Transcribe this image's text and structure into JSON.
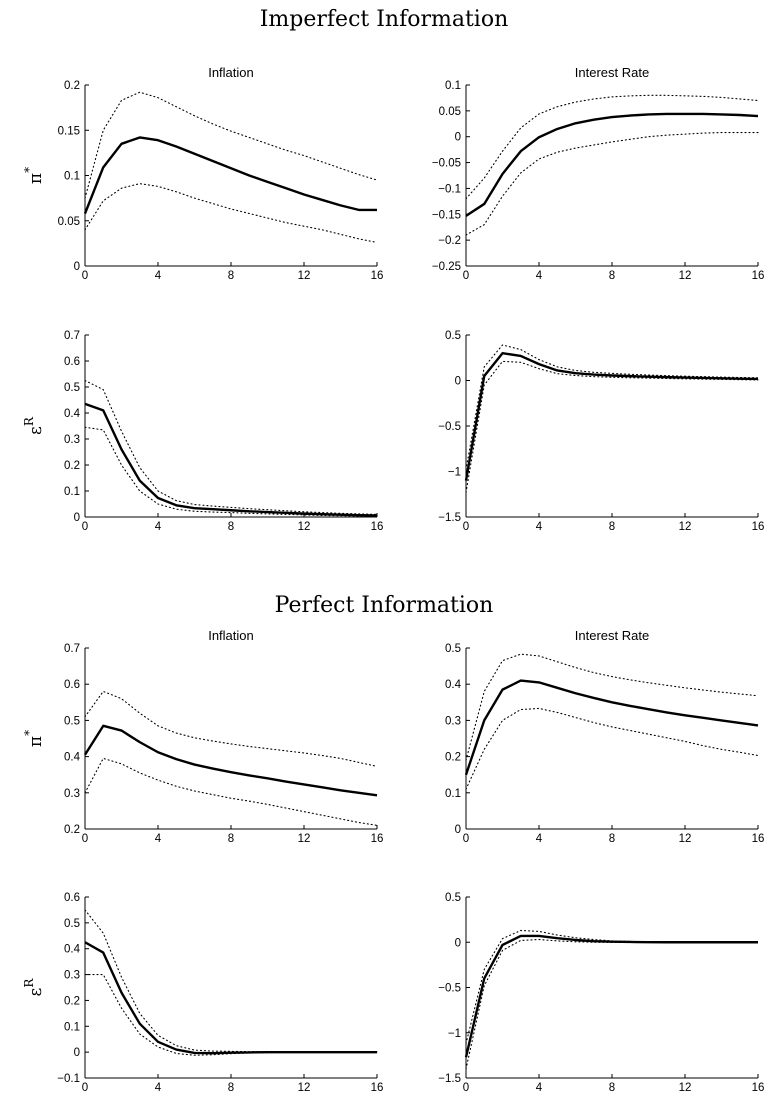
{
  "sections": [
    {
      "title": "Imperfect Information"
    },
    {
      "title": "Perfect Information"
    }
  ],
  "chart_data": [
    {
      "type": "line",
      "section": "Imperfect Information",
      "title": "Inflation",
      "row_label": {
        "base": "π",
        "sup": "*"
      },
      "xlim": [
        0,
        16
      ],
      "ylim": [
        0,
        0.2
      ],
      "xticks": [
        0,
        4,
        8,
        12,
        16
      ],
      "yticks": [
        0,
        0.05,
        0.1,
        0.15,
        0.2
      ],
      "ytick_labels": [
        "0",
        "0.05",
        "0.1",
        "0.15",
        "0.2"
      ],
      "x": [
        0,
        1,
        2,
        3,
        4,
        5,
        6,
        7,
        8,
        9,
        10,
        11,
        12,
        13,
        14,
        15,
        16
      ],
      "series": [
        {
          "role": "median",
          "style": "solid",
          "values": [
            0.058,
            0.109,
            0.135,
            0.142,
            0.139,
            0.132,
            0.124,
            0.116,
            0.108,
            0.1,
            0.093,
            0.086,
            0.079,
            0.073,
            0.067,
            0.062,
            0.062
          ]
        },
        {
          "role": "upper",
          "style": "dotted",
          "values": [
            0.075,
            0.15,
            0.183,
            0.192,
            0.186,
            0.176,
            0.166,
            0.157,
            0.149,
            0.142,
            0.135,
            0.128,
            0.122,
            0.115,
            0.108,
            0.101,
            0.095
          ]
        },
        {
          "role": "lower",
          "style": "dotted",
          "values": [
            0.04,
            0.072,
            0.086,
            0.091,
            0.088,
            0.082,
            0.075,
            0.069,
            0.063,
            0.058,
            0.053,
            0.048,
            0.044,
            0.04,
            0.035,
            0.03,
            0.026
          ]
        }
      ]
    },
    {
      "type": "line",
      "section": "Imperfect Information",
      "title": "Interest Rate",
      "xlim": [
        0,
        16
      ],
      "ylim": [
        -0.25,
        0.1
      ],
      "xticks": [
        0,
        4,
        8,
        12,
        16
      ],
      "yticks": [
        -0.25,
        -0.2,
        -0.15,
        -0.1,
        -0.05,
        0,
        0.05,
        0.1
      ],
      "ytick_labels": [
        "−0.25",
        "−0.2",
        "−0.15",
        "−0.1",
        "−0.05",
        "0",
        "0.05",
        "0.1"
      ],
      "x": [
        0,
        1,
        2,
        3,
        4,
        5,
        6,
        7,
        8,
        9,
        10,
        11,
        12,
        13,
        14,
        15,
        16
      ],
      "series": [
        {
          "role": "median",
          "style": "solid",
          "values": [
            -0.153,
            -0.13,
            -0.072,
            -0.028,
            -0.001,
            0.015,
            0.026,
            0.033,
            0.038,
            0.041,
            0.043,
            0.044,
            0.044,
            0.044,
            0.043,
            0.042,
            0.04
          ]
        },
        {
          "role": "upper",
          "style": "dotted",
          "values": [
            -0.12,
            -0.08,
            -0.028,
            0.017,
            0.044,
            0.058,
            0.067,
            0.073,
            0.077,
            0.079,
            0.08,
            0.08,
            0.079,
            0.078,
            0.076,
            0.073,
            0.07
          ]
        },
        {
          "role": "lower",
          "style": "dotted",
          "values": [
            -0.19,
            -0.17,
            -0.115,
            -0.07,
            -0.043,
            -0.03,
            -0.022,
            -0.016,
            -0.01,
            -0.005,
            0.0,
            0.003,
            0.005,
            0.007,
            0.008,
            0.008,
            0.008
          ]
        }
      ]
    },
    {
      "type": "line",
      "section": "Imperfect Information",
      "title": "",
      "row_label": {
        "base": "ε",
        "sup": "R"
      },
      "xlim": [
        0,
        16
      ],
      "ylim": [
        0,
        0.7
      ],
      "xticks": [
        0,
        4,
        8,
        12,
        16
      ],
      "yticks": [
        0,
        0.1,
        0.2,
        0.3,
        0.4,
        0.5,
        0.6,
        0.7
      ],
      "ytick_labels": [
        "0",
        "0.1",
        "0.2",
        "0.3",
        "0.4",
        "0.5",
        "0.6",
        "0.7"
      ],
      "x": [
        0,
        1,
        2,
        3,
        4,
        5,
        6,
        7,
        8,
        9,
        10,
        11,
        12,
        13,
        14,
        15,
        16
      ],
      "series": [
        {
          "role": "median",
          "style": "solid",
          "values": [
            0.435,
            0.41,
            0.26,
            0.14,
            0.073,
            0.045,
            0.034,
            0.03,
            0.026,
            0.022,
            0.019,
            0.016,
            0.013,
            0.011,
            0.009,
            0.007,
            0.006
          ]
        },
        {
          "role": "upper",
          "style": "dotted",
          "values": [
            0.525,
            0.49,
            0.33,
            0.19,
            0.1,
            0.063,
            0.048,
            0.042,
            0.037,
            0.032,
            0.028,
            0.024,
            0.02,
            0.017,
            0.014,
            0.012,
            0.01
          ]
        },
        {
          "role": "lower",
          "style": "dotted",
          "values": [
            0.345,
            0.335,
            0.2,
            0.1,
            0.05,
            0.03,
            0.022,
            0.019,
            0.017,
            0.014,
            0.012,
            0.01,
            0.008,
            0.006,
            0.005,
            0.004,
            0.003
          ]
        }
      ]
    },
    {
      "type": "line",
      "section": "Imperfect Information",
      "title": "",
      "xlim": [
        0,
        16
      ],
      "ylim": [
        -1.5,
        0.5
      ],
      "xticks": [
        0,
        4,
        8,
        12,
        16
      ],
      "yticks": [
        -1.5,
        -1,
        -0.5,
        0,
        0.5
      ],
      "ytick_labels": [
        "−1.5",
        "−1",
        "−0.5",
        "0",
        "0.5"
      ],
      "x": [
        0,
        1,
        2,
        3,
        4,
        5,
        6,
        7,
        8,
        9,
        10,
        11,
        12,
        13,
        14,
        15,
        16
      ],
      "series": [
        {
          "role": "median",
          "style": "solid",
          "values": [
            -1.1,
            0.05,
            0.3,
            0.27,
            0.18,
            0.11,
            0.08,
            0.065,
            0.055,
            0.048,
            0.042,
            0.037,
            0.032,
            0.028,
            0.024,
            0.02,
            0.017
          ]
        },
        {
          "role": "upper",
          "style": "dotted",
          "values": [
            -0.98,
            0.15,
            0.39,
            0.34,
            0.23,
            0.15,
            0.11,
            0.09,
            0.078,
            0.068,
            0.06,
            0.053,
            0.047,
            0.042,
            0.037,
            0.033,
            0.03
          ]
        },
        {
          "role": "lower",
          "style": "dotted",
          "values": [
            -1.23,
            -0.05,
            0.21,
            0.2,
            0.13,
            0.075,
            0.055,
            0.042,
            0.035,
            0.03,
            0.026,
            0.022,
            0.018,
            0.015,
            0.012,
            0.009,
            0.006
          ]
        }
      ]
    },
    {
      "type": "line",
      "section": "Perfect Information",
      "title": "Inflation",
      "row_label": {
        "base": "π",
        "sup": "*"
      },
      "xlim": [
        0,
        16
      ],
      "ylim": [
        0.2,
        0.7
      ],
      "xticks": [
        0,
        4,
        8,
        12,
        16
      ],
      "yticks": [
        0.2,
        0.3,
        0.4,
        0.5,
        0.6,
        0.7
      ],
      "ytick_labels": [
        "0.2",
        "0.3",
        "0.4",
        "0.5",
        "0.6",
        "0.7"
      ],
      "x": [
        0,
        1,
        2,
        3,
        4,
        5,
        6,
        7,
        8,
        9,
        10,
        11,
        12,
        13,
        14,
        15,
        16
      ],
      "series": [
        {
          "role": "median",
          "style": "solid",
          "values": [
            0.405,
            0.485,
            0.472,
            0.44,
            0.412,
            0.393,
            0.378,
            0.367,
            0.357,
            0.348,
            0.34,
            0.331,
            0.323,
            0.315,
            0.307,
            0.3,
            0.293
          ]
        },
        {
          "role": "upper",
          "style": "dotted",
          "values": [
            0.51,
            0.58,
            0.56,
            0.52,
            0.485,
            0.465,
            0.452,
            0.443,
            0.435,
            0.428,
            0.422,
            0.416,
            0.41,
            0.403,
            0.395,
            0.384,
            0.373
          ]
        },
        {
          "role": "lower",
          "style": "dotted",
          "values": [
            0.3,
            0.395,
            0.38,
            0.355,
            0.335,
            0.318,
            0.305,
            0.295,
            0.285,
            0.277,
            0.268,
            0.258,
            0.248,
            0.238,
            0.228,
            0.218,
            0.21
          ]
        }
      ]
    },
    {
      "type": "line",
      "section": "Perfect Information",
      "title": "Interest Rate",
      "xlim": [
        0,
        16
      ],
      "ylim": [
        0,
        0.5
      ],
      "xticks": [
        0,
        4,
        8,
        12,
        16
      ],
      "yticks": [
        0,
        0.1,
        0.2,
        0.3,
        0.4,
        0.5
      ],
      "ytick_labels": [
        "0",
        "0.1",
        "0.2",
        "0.3",
        "0.4",
        "0.5"
      ],
      "x": [
        0,
        1,
        2,
        3,
        4,
        5,
        6,
        7,
        8,
        9,
        10,
        11,
        12,
        13,
        14,
        15,
        16
      ],
      "series": [
        {
          "role": "median",
          "style": "solid",
          "values": [
            0.15,
            0.3,
            0.385,
            0.41,
            0.405,
            0.39,
            0.375,
            0.362,
            0.35,
            0.34,
            0.331,
            0.322,
            0.314,
            0.307,
            0.3,
            0.293,
            0.286
          ]
        },
        {
          "role": "upper",
          "style": "dotted",
          "values": [
            0.19,
            0.38,
            0.465,
            0.483,
            0.478,
            0.462,
            0.446,
            0.432,
            0.421,
            0.412,
            0.404,
            0.397,
            0.39,
            0.384,
            0.378,
            0.373,
            0.368
          ]
        },
        {
          "role": "lower",
          "style": "dotted",
          "values": [
            0.11,
            0.22,
            0.3,
            0.33,
            0.333,
            0.322,
            0.308,
            0.294,
            0.282,
            0.272,
            0.262,
            0.252,
            0.242,
            0.23,
            0.22,
            0.212,
            0.203
          ]
        }
      ]
    },
    {
      "type": "line",
      "section": "Perfect Information",
      "title": "",
      "row_label": {
        "base": "ε",
        "sup": "R"
      },
      "xlim": [
        0,
        16
      ],
      "ylim": [
        -0.1,
        0.6
      ],
      "xticks": [
        0,
        4,
        8,
        12,
        16
      ],
      "yticks": [
        -0.1,
        0,
        0.1,
        0.2,
        0.3,
        0.4,
        0.5,
        0.6
      ],
      "ytick_labels": [
        "−0.1",
        "0",
        "0.1",
        "0.2",
        "0.3",
        "0.4",
        "0.5",
        "0.6"
      ],
      "x": [
        0,
        1,
        2,
        3,
        4,
        5,
        6,
        7,
        8,
        9,
        10,
        11,
        12,
        13,
        14,
        15,
        16
      ],
      "series": [
        {
          "role": "median",
          "style": "solid",
          "values": [
            0.425,
            0.385,
            0.23,
            0.11,
            0.04,
            0.01,
            -0.003,
            -0.004,
            -0.002,
            -0.001,
            0.0,
            0.0,
            0.0,
            0.0,
            0.0,
            0.0,
            0.0
          ]
        },
        {
          "role": "upper",
          "style": "dotted",
          "values": [
            0.55,
            0.46,
            0.29,
            0.15,
            0.065,
            0.025,
            0.008,
            0.004,
            0.003,
            0.002,
            0.001,
            0.001,
            0.001,
            0.001,
            0.001,
            0.001,
            0.001
          ]
        },
        {
          "role": "lower",
          "style": "dotted",
          "values": [
            0.3,
            0.3,
            0.17,
            0.07,
            0.02,
            -0.005,
            -0.012,
            -0.01,
            -0.006,
            -0.003,
            -0.002,
            -0.001,
            -0.001,
            -0.001,
            -0.001,
            -0.001,
            -0.001
          ]
        }
      ]
    },
    {
      "type": "line",
      "section": "Perfect Information",
      "title": "",
      "xlim": [
        0,
        16
      ],
      "ylim": [
        -1.5,
        0.5
      ],
      "xticks": [
        0,
        4,
        8,
        12,
        16
      ],
      "yticks": [
        -1.5,
        -1,
        -0.5,
        0,
        0.5
      ],
      "ytick_labels": [
        "−1.5",
        "−1",
        "−0.5",
        "0",
        "0.5"
      ],
      "x": [
        0,
        1,
        2,
        3,
        4,
        5,
        6,
        7,
        8,
        9,
        10,
        11,
        12,
        13,
        14,
        15,
        16
      ],
      "series": [
        {
          "role": "median",
          "style": "solid",
          "values": [
            -1.27,
            -0.4,
            -0.03,
            0.07,
            0.07,
            0.045,
            0.025,
            0.012,
            0.006,
            0.003,
            0.001,
            0.0,
            0.0,
            0.0,
            0.0,
            0.0,
            0.0
          ]
        },
        {
          "role": "upper",
          "style": "dotted",
          "values": [
            -1.12,
            -0.3,
            0.04,
            0.13,
            0.12,
            0.08,
            0.05,
            0.03,
            0.015,
            0.008,
            0.004,
            0.002,
            0.001,
            0.001,
            0.001,
            0.001,
            0.001
          ]
        },
        {
          "role": "lower",
          "style": "dotted",
          "values": [
            -1.4,
            -0.48,
            -0.09,
            0.02,
            0.03,
            0.015,
            0.005,
            0.0,
            -0.002,
            -0.002,
            -0.001,
            -0.001,
            -0.001,
            -0.001,
            -0.001,
            -0.001,
            -0.001
          ]
        }
      ]
    }
  ]
}
